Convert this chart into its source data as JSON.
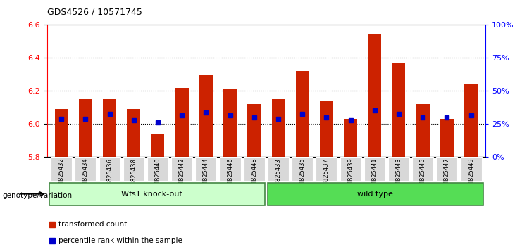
{
  "title": "GDS4526 / 10571745",
  "samples": [
    "GSM825432",
    "GSM825434",
    "GSM825436",
    "GSM825438",
    "GSM825440",
    "GSM825442",
    "GSM825444",
    "GSM825446",
    "GSM825448",
    "GSM825433",
    "GSM825435",
    "GSM825437",
    "GSM825439",
    "GSM825441",
    "GSM825443",
    "GSM825445",
    "GSM825447",
    "GSM825449"
  ],
  "bar_values": [
    6.09,
    6.15,
    6.15,
    6.09,
    5.94,
    6.22,
    6.3,
    6.21,
    6.12,
    6.15,
    6.32,
    6.14,
    6.03,
    6.54,
    6.37,
    6.12,
    6.03,
    6.24
  ],
  "blue_dot_values": [
    6.03,
    6.03,
    6.06,
    6.02,
    6.01,
    6.05,
    6.07,
    6.05,
    6.04,
    6.03,
    6.06,
    6.04,
    6.02,
    6.08,
    6.06,
    6.04,
    6.04,
    6.05
  ],
  "ymin": 5.8,
  "ymax": 6.6,
  "yticks": [
    5.8,
    6.0,
    6.2,
    6.4,
    6.6
  ],
  "right_ytick_pcts": [
    0,
    25,
    50,
    75,
    100
  ],
  "right_yticklabels": [
    "0%",
    "25%",
    "50%",
    "75%",
    "100%"
  ],
  "group1_label": "Wfs1 knock-out",
  "group2_label": "wild type",
  "group1_count": 9,
  "group2_count": 9,
  "bar_color": "#cc2200",
  "dot_color": "#0000cc",
  "group1_bg": "#ccffcc",
  "group2_bg": "#55dd55",
  "genotype_label": "genotype/variation",
  "legend1": "transformed count",
  "legend2": "percentile rank within the sample",
  "bar_bottom": 5.8,
  "grid_lines": [
    6.0,
    6.2,
    6.4
  ]
}
